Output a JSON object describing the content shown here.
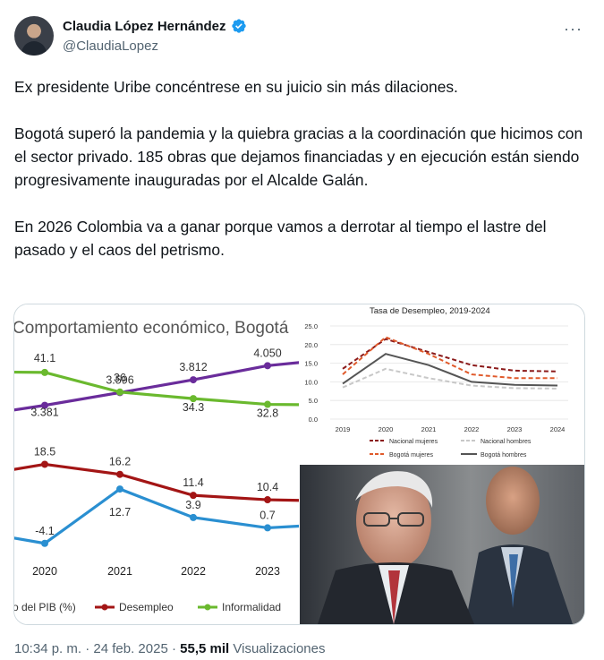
{
  "author": {
    "name": "Claudia López Hernández",
    "handle": "@ClaudiaLopez"
  },
  "tweet": {
    "paragraphs": [
      "Ex presidente Uribe concéntrese en su juicio sin más dilaciones.",
      "Bogotá superó la pandemia y la quiebra gracias a la coordinación que hicimos con el sector privado. 185 obras que dejamos financiadas y en ejecución están siendo progresivamente inauguradas por el Alcalde Galán.",
      "En 2026 Colombia va a ganar porque vamos a derrotar al tiempo el lastre del pasado y el caos del petrismo."
    ]
  },
  "footer": {
    "time": "10:34 p. m.",
    "sep": " · ",
    "date": "24 feb. 2025",
    "sep2": " · ",
    "views": "55,5 mil",
    "views_label": "Visualizaciones"
  },
  "colors": {
    "purple": "#6a2c9b",
    "green": "#6ab92e",
    "red": "#a31515",
    "blue": "#2a8fd1",
    "accent_verified": "#1d9bf0"
  },
  "chart_data": [
    {
      "type": "line",
      "title": "Comportamiento económico, Bogotá",
      "categories": [
        "2020",
        "2021",
        "2022",
        "2023"
      ],
      "series": [
        {
          "name": "",
          "values": [
            3.381,
            3.596,
            3.812,
            4.05
          ],
          "labels": [
            "3.381",
            "3.596",
            "3.812",
            "4.050"
          ],
          "color": "#6a2c9b"
        },
        {
          "name": "Informalidad",
          "values": [
            41.1,
            36,
            34.3,
            32.8
          ],
          "labels": [
            "41.1",
            "36",
            "34.3",
            "32.8"
          ],
          "color": "#6ab92e"
        },
        {
          "name": "Desempleo",
          "values": [
            18.5,
            16.2,
            11.4,
            10.4
          ],
          "labels": [
            "18.5",
            "16.2",
            "11.4",
            "10.4"
          ],
          "color": "#a31515"
        },
        {
          "name": "o del PIB (%)",
          "values": [
            -4.1,
            12.7,
            3.9,
            0.7
          ],
          "labels": [
            "-4.1",
            "12.7",
            "3.9",
            "0.7"
          ],
          "color": "#2a8fd1"
        }
      ],
      "legend": [
        "o del PIB (%)",
        "Desempleo",
        "Informalidad"
      ],
      "legend_position": "bottom"
    },
    {
      "type": "line",
      "title": "Tasa de Desempleo, 2019-2024",
      "x": [
        "2019",
        "2020",
        "2021",
        "2022",
        "2023",
        "2024"
      ],
      "yticks": [
        "0.0",
        "5.0",
        "10.0",
        "15.0",
        "20.0",
        "25.0"
      ],
      "ylim": [
        0,
        25
      ],
      "series": [
        {
          "name": "Nacional mujeres",
          "values": [
            13.5,
            21.5,
            18.0,
            14.5,
            13.0,
            12.8
          ],
          "style": "dashed",
          "color": "#8b1a1a"
        },
        {
          "name": "Nacional hombres",
          "values": [
            8.5,
            13.5,
            11.0,
            9.0,
            8.3,
            8.2
          ],
          "style": "dashed",
          "color": "#c8c8c8"
        },
        {
          "name": "Bogotá mujeres",
          "values": [
            12.0,
            22.0,
            17.5,
            12.0,
            11.0,
            11.0
          ],
          "style": "dashed",
          "color": "#e05a2b"
        },
        {
          "name": "Bogotá hombres",
          "values": [
            9.5,
            17.5,
            14.5,
            10.0,
            9.2,
            9.0
          ],
          "style": "solid",
          "color": "#555555"
        }
      ],
      "legend_position": "bottom"
    }
  ]
}
